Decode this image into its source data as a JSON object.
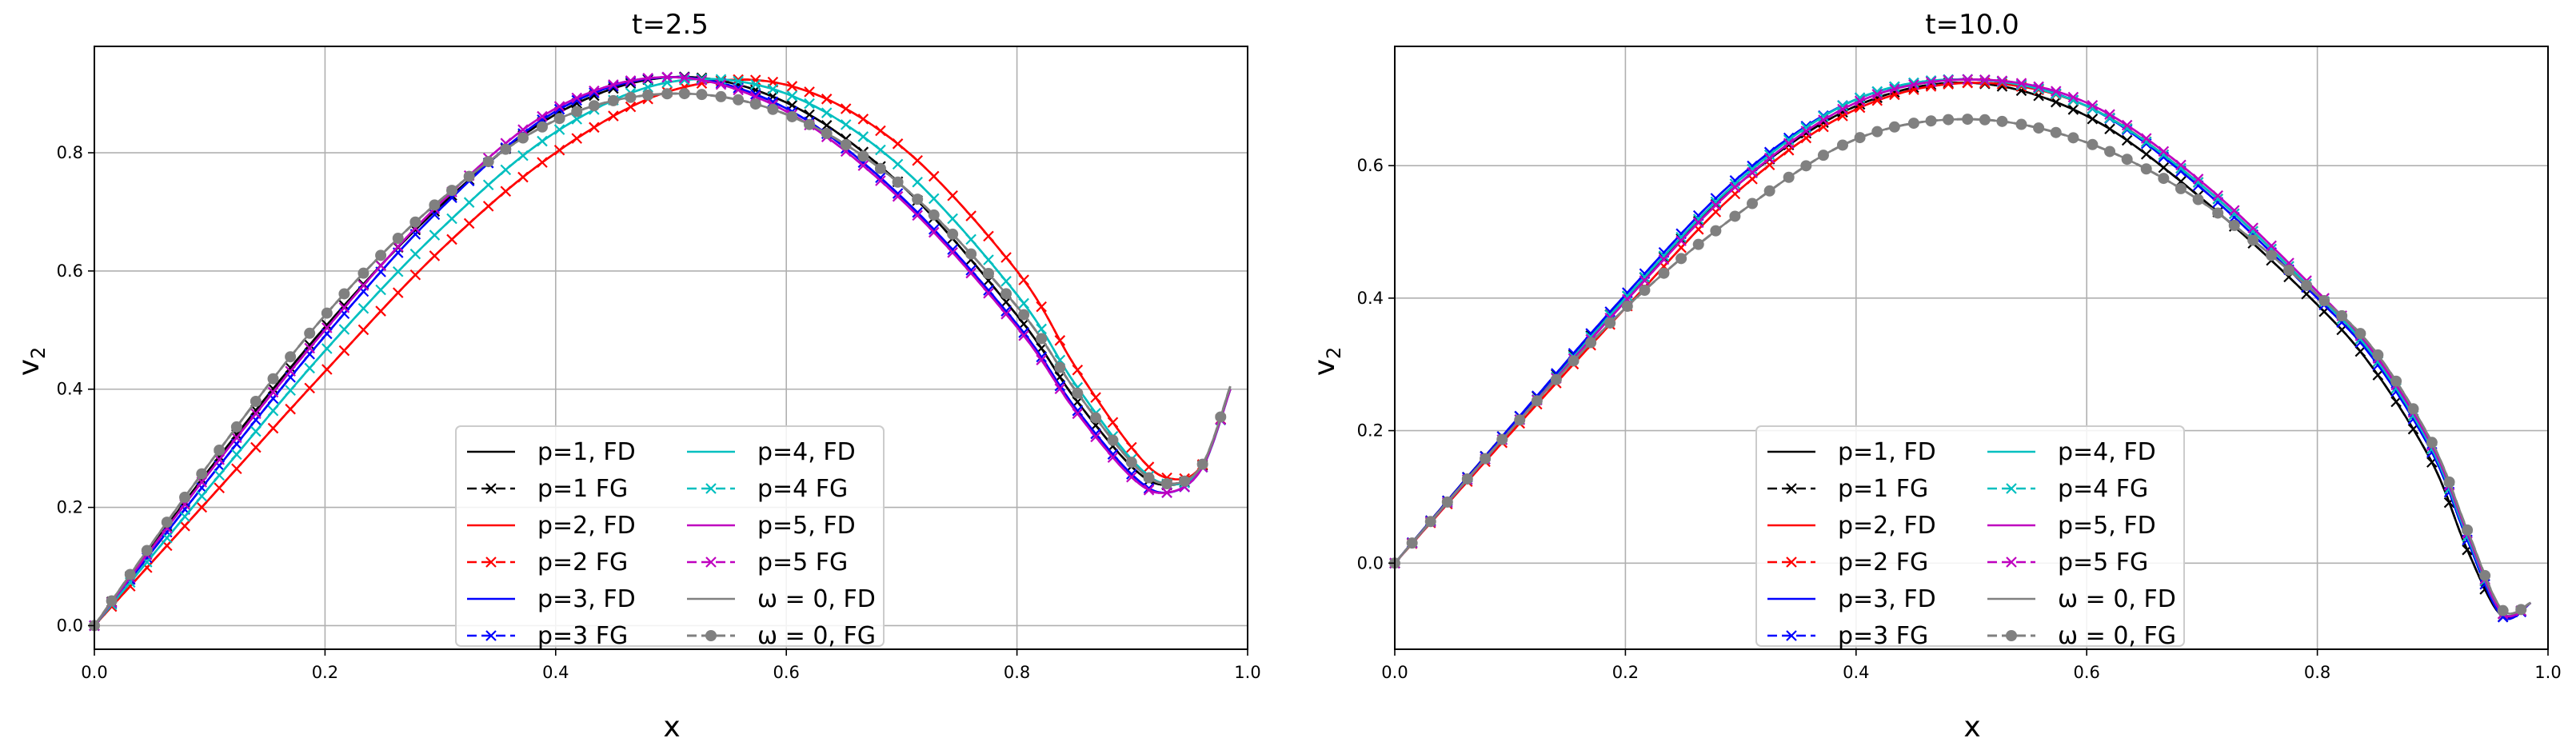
{
  "legend_entries": [
    {
      "label": "p=1, FD",
      "color": "#000000",
      "dash": false,
      "marker": "none"
    },
    {
      "label": "p=1 FG",
      "color": "#000000",
      "dash": true,
      "marker": "x"
    },
    {
      "label": "p=2, FD",
      "color": "#ff0000",
      "dash": false,
      "marker": "none"
    },
    {
      "label": "p=2 FG",
      "color": "#ff0000",
      "dash": true,
      "marker": "x"
    },
    {
      "label": "p=3, FD",
      "color": "#0000ff",
      "dash": false,
      "marker": "none"
    },
    {
      "label": "p=3 FG",
      "color": "#0000ff",
      "dash": true,
      "marker": "x"
    },
    {
      "label": "p=4, FD",
      "color": "#00bfbf",
      "dash": false,
      "marker": "none"
    },
    {
      "label": "p=4 FG",
      "color": "#00bfbf",
      "dash": true,
      "marker": "x"
    },
    {
      "label": "p=5, FD",
      "color": "#bf00bf",
      "dash": false,
      "marker": "none"
    },
    {
      "label": "p=5 FG",
      "color": "#bf00bf",
      "dash": true,
      "marker": "x"
    },
    {
      "label": "ω = 0, FD",
      "color": "#808080",
      "dash": false,
      "marker": "none"
    },
    {
      "label": "ω = 0, FG",
      "color": "#808080",
      "dash": true,
      "marker": "o"
    }
  ],
  "chart_data": [
    {
      "type": "line",
      "title": "t=2.5",
      "xlabel": "x",
      "ylabel": "v2",
      "xlim": [
        0.0,
        1.0
      ],
      "ylim": [
        -0.04,
        0.98
      ],
      "xticks": [
        "0.0",
        "0.2",
        "0.4",
        "0.6",
        "0.8",
        "1.0"
      ],
      "yticks": [
        "0.0",
        "0.2",
        "0.4",
        "0.6",
        "0.8"
      ],
      "grid": true,
      "legend_position": "lower center",
      "series": [
        {
          "name": "p=1, FD",
          "x": [
            0.0,
            0.1,
            0.2,
            0.3,
            0.4,
            0.5,
            0.6,
            0.7,
            0.8,
            0.85,
            0.9,
            0.93,
            0.96,
            0.985
          ],
          "y": [
            0.0,
            0.265,
            0.505,
            0.71,
            0.865,
            0.928,
            0.885,
            0.745,
            0.525,
            0.385,
            0.268,
            0.238,
            0.268,
            0.4
          ]
        },
        {
          "name": "p=1 FG",
          "x": [
            0.0,
            0.1,
            0.2,
            0.3,
            0.4,
            0.5,
            0.6,
            0.7,
            0.8,
            0.85,
            0.9,
            0.93,
            0.96,
            0.985
          ],
          "y": [
            0.0,
            0.265,
            0.505,
            0.71,
            0.865,
            0.928,
            0.885,
            0.745,
            0.525,
            0.385,
            0.268,
            0.238,
            0.268,
            0.4
          ]
        },
        {
          "name": "p=2, FD",
          "x": [
            0.0,
            0.1,
            0.2,
            0.3,
            0.4,
            0.5,
            0.6,
            0.7,
            0.8,
            0.85,
            0.9,
            0.93,
            0.96,
            0.985
          ],
          "y": [
            0.0,
            0.215,
            0.43,
            0.635,
            0.8,
            0.905,
            0.915,
            0.81,
            0.6,
            0.44,
            0.3,
            0.25,
            0.27,
            0.4
          ]
        },
        {
          "name": "p=2 FG",
          "x": [
            0.0,
            0.1,
            0.2,
            0.3,
            0.4,
            0.5,
            0.6,
            0.7,
            0.8,
            0.85,
            0.9,
            0.93,
            0.96,
            0.985
          ],
          "y": [
            0.0,
            0.215,
            0.43,
            0.635,
            0.8,
            0.905,
            0.915,
            0.81,
            0.6,
            0.44,
            0.3,
            0.25,
            0.27,
            0.4
          ]
        },
        {
          "name": "p=3, FD",
          "x": [
            0.0,
            0.1,
            0.2,
            0.3,
            0.4,
            0.5,
            0.6,
            0.7,
            0.8,
            0.85,
            0.9,
            0.93,
            0.96,
            0.985
          ],
          "y": [
            0.0,
            0.25,
            0.49,
            0.705,
            0.87,
            0.928,
            0.875,
            0.725,
            0.51,
            0.37,
            0.255,
            0.225,
            0.265,
            0.4
          ]
        },
        {
          "name": "p=3 FG",
          "x": [
            0.0,
            0.1,
            0.2,
            0.3,
            0.4,
            0.5,
            0.6,
            0.7,
            0.8,
            0.85,
            0.9,
            0.93,
            0.96,
            0.985
          ],
          "y": [
            0.0,
            0.25,
            0.49,
            0.705,
            0.87,
            0.928,
            0.875,
            0.725,
            0.51,
            0.37,
            0.255,
            0.225,
            0.265,
            0.4
          ]
        },
        {
          "name": "p=4, FD",
          "x": [
            0.0,
            0.1,
            0.2,
            0.3,
            0.4,
            0.5,
            0.6,
            0.7,
            0.8,
            0.85,
            0.9,
            0.93,
            0.96,
            0.985
          ],
          "y": [
            0.0,
            0.235,
            0.465,
            0.67,
            0.835,
            0.92,
            0.9,
            0.775,
            0.56,
            0.41,
            0.28,
            0.24,
            0.265,
            0.4
          ]
        },
        {
          "name": "p=4 FG",
          "x": [
            0.0,
            0.1,
            0.2,
            0.3,
            0.4,
            0.5,
            0.6,
            0.7,
            0.8,
            0.85,
            0.9,
            0.93,
            0.96,
            0.985
          ],
          "y": [
            0.0,
            0.235,
            0.465,
            0.67,
            0.835,
            0.92,
            0.9,
            0.775,
            0.56,
            0.41,
            0.28,
            0.24,
            0.265,
            0.4
          ]
        },
        {
          "name": "p=5, FD",
          "x": [
            0.0,
            0.1,
            0.2,
            0.3,
            0.4,
            0.5,
            0.6,
            0.7,
            0.8,
            0.85,
            0.9,
            0.93,
            0.96,
            0.985
          ],
          "y": [
            0.0,
            0.26,
            0.5,
            0.715,
            0.875,
            0.928,
            0.87,
            0.72,
            0.505,
            0.365,
            0.25,
            0.225,
            0.265,
            0.4
          ]
        },
        {
          "name": "p=5 FG",
          "x": [
            0.0,
            0.1,
            0.2,
            0.3,
            0.4,
            0.5,
            0.6,
            0.7,
            0.8,
            0.85,
            0.9,
            0.93,
            0.96,
            0.985
          ],
          "y": [
            0.0,
            0.26,
            0.5,
            0.715,
            0.875,
            0.928,
            0.87,
            0.72,
            0.505,
            0.365,
            0.25,
            0.225,
            0.265,
            0.4
          ]
        },
        {
          "name": "ω = 0, FD",
          "x": [
            0.0,
            0.1,
            0.2,
            0.3,
            0.4,
            0.5,
            0.6,
            0.7,
            0.8,
            0.85,
            0.9,
            0.93,
            0.96,
            0.985
          ],
          "y": [
            0.0,
            0.275,
            0.525,
            0.72,
            0.855,
            0.9,
            0.865,
            0.745,
            0.54,
            0.4,
            0.275,
            0.24,
            0.27,
            0.405
          ]
        },
        {
          "name": "ω = 0, FG",
          "x": [
            0.0,
            0.1,
            0.2,
            0.3,
            0.4,
            0.5,
            0.6,
            0.7,
            0.8,
            0.85,
            0.9,
            0.93,
            0.96,
            0.985
          ],
          "y": [
            0.0,
            0.275,
            0.525,
            0.72,
            0.855,
            0.9,
            0.865,
            0.745,
            0.54,
            0.4,
            0.275,
            0.24,
            0.27,
            0.405
          ]
        }
      ]
    },
    {
      "type": "line",
      "title": "t=10.0",
      "xlabel": "x",
      "ylabel": "v2",
      "xlim": [
        0.0,
        1.0
      ],
      "ylim": [
        -0.13,
        0.78
      ],
      "xticks": [
        "0.0",
        "0.2",
        "0.4",
        "0.6",
        "0.8",
        "1.0"
      ],
      "yticks": [
        "0.0",
        "0.2",
        "0.4",
        "0.6"
      ],
      "grid": true,
      "legend_position": "lower center",
      "series": [
        {
          "name": "p=1, FD",
          "x": [
            0.0,
            0.1,
            0.2,
            0.3,
            0.4,
            0.5,
            0.6,
            0.7,
            0.8,
            0.85,
            0.9,
            0.93,
            0.96,
            0.985
          ],
          "y": [
            0.0,
            0.205,
            0.4,
            0.575,
            0.69,
            0.725,
            0.675,
            0.55,
            0.39,
            0.29,
            0.15,
            0.02,
            -0.08,
            -0.06
          ]
        },
        {
          "name": "p=1 FG",
          "x": [
            0.0,
            0.1,
            0.2,
            0.3,
            0.4,
            0.5,
            0.6,
            0.7,
            0.8,
            0.85,
            0.9,
            0.93,
            0.96,
            0.985
          ],
          "y": [
            0.0,
            0.205,
            0.4,
            0.575,
            0.69,
            0.725,
            0.675,
            0.55,
            0.39,
            0.29,
            0.15,
            0.02,
            -0.08,
            -0.06
          ]
        },
        {
          "name": "p=2, FD",
          "x": [
            0.0,
            0.1,
            0.2,
            0.3,
            0.4,
            0.5,
            0.6,
            0.7,
            0.8,
            0.85,
            0.9,
            0.93,
            0.96,
            0.985
          ],
          "y": [
            0.0,
            0.195,
            0.385,
            0.565,
            0.685,
            0.725,
            0.69,
            0.57,
            0.405,
            0.31,
            0.17,
            0.04,
            -0.075,
            -0.06
          ]
        },
        {
          "name": "p=2 FG",
          "x": [
            0.0,
            0.1,
            0.2,
            0.3,
            0.4,
            0.5,
            0.6,
            0.7,
            0.8,
            0.85,
            0.9,
            0.93,
            0.96,
            0.985
          ],
          "y": [
            0.0,
            0.195,
            0.385,
            0.565,
            0.685,
            0.725,
            0.69,
            0.57,
            0.405,
            0.31,
            0.17,
            0.04,
            -0.075,
            -0.06
          ]
        },
        {
          "name": "p=3, FD",
          "x": [
            0.0,
            0.1,
            0.2,
            0.3,
            0.4,
            0.5,
            0.6,
            0.7,
            0.8,
            0.85,
            0.9,
            0.93,
            0.96,
            0.985
          ],
          "y": [
            0.0,
            0.205,
            0.405,
            0.585,
            0.7,
            0.73,
            0.69,
            0.565,
            0.4,
            0.305,
            0.165,
            0.035,
            -0.08,
            -0.06
          ]
        },
        {
          "name": "p=3 FG",
          "x": [
            0.0,
            0.1,
            0.2,
            0.3,
            0.4,
            0.5,
            0.6,
            0.7,
            0.8,
            0.85,
            0.9,
            0.93,
            0.96,
            0.985
          ],
          "y": [
            0.0,
            0.205,
            0.405,
            0.585,
            0.7,
            0.73,
            0.69,
            0.565,
            0.4,
            0.305,
            0.165,
            0.035,
            -0.08,
            -0.06
          ]
        },
        {
          "name": "p=4, FD",
          "x": [
            0.0,
            0.1,
            0.2,
            0.3,
            0.4,
            0.5,
            0.6,
            0.7,
            0.8,
            0.85,
            0.9,
            0.93,
            0.96,
            0.985
          ],
          "y": [
            0.0,
            0.2,
            0.4,
            0.58,
            0.7,
            0.73,
            0.69,
            0.57,
            0.405,
            0.31,
            0.17,
            0.04,
            -0.075,
            -0.06
          ]
        },
        {
          "name": "p=4 FG",
          "x": [
            0.0,
            0.1,
            0.2,
            0.3,
            0.4,
            0.5,
            0.6,
            0.7,
            0.8,
            0.85,
            0.9,
            0.93,
            0.96,
            0.985
          ],
          "y": [
            0.0,
            0.2,
            0.4,
            0.58,
            0.7,
            0.73,
            0.69,
            0.57,
            0.405,
            0.31,
            0.17,
            0.04,
            -0.075,
            -0.06
          ]
        },
        {
          "name": "p=5, FD",
          "x": [
            0.0,
            0.1,
            0.2,
            0.3,
            0.4,
            0.5,
            0.6,
            0.7,
            0.8,
            0.85,
            0.9,
            0.93,
            0.96,
            0.985
          ],
          "y": [
            0.0,
            0.2,
            0.395,
            0.575,
            0.695,
            0.73,
            0.695,
            0.575,
            0.41,
            0.315,
            0.175,
            0.045,
            -0.075,
            -0.06
          ]
        },
        {
          "name": "p=5 FG",
          "x": [
            0.0,
            0.1,
            0.2,
            0.3,
            0.4,
            0.5,
            0.6,
            0.7,
            0.8,
            0.85,
            0.9,
            0.93,
            0.96,
            0.985
          ],
          "y": [
            0.0,
            0.2,
            0.395,
            0.575,
            0.695,
            0.73,
            0.695,
            0.575,
            0.41,
            0.315,
            0.175,
            0.045,
            -0.075,
            -0.06
          ]
        },
        {
          "name": "ω = 0, FD",
          "x": [
            0.0,
            0.1,
            0.2,
            0.3,
            0.4,
            0.5,
            0.6,
            0.7,
            0.8,
            0.85,
            0.9,
            0.93,
            0.96,
            0.985
          ],
          "y": [
            0.0,
            0.2,
            0.385,
            0.53,
            0.64,
            0.67,
            0.635,
            0.545,
            0.405,
            0.32,
            0.18,
            0.05,
            -0.07,
            -0.06
          ]
        },
        {
          "name": "ω = 0, FG",
          "x": [
            0.0,
            0.1,
            0.2,
            0.3,
            0.4,
            0.5,
            0.6,
            0.7,
            0.8,
            0.85,
            0.9,
            0.93,
            0.96,
            0.985
          ],
          "y": [
            0.0,
            0.2,
            0.385,
            0.53,
            0.64,
            0.67,
            0.635,
            0.545,
            0.405,
            0.32,
            0.18,
            0.05,
            -0.07,
            -0.06
          ]
        }
      ]
    }
  ]
}
